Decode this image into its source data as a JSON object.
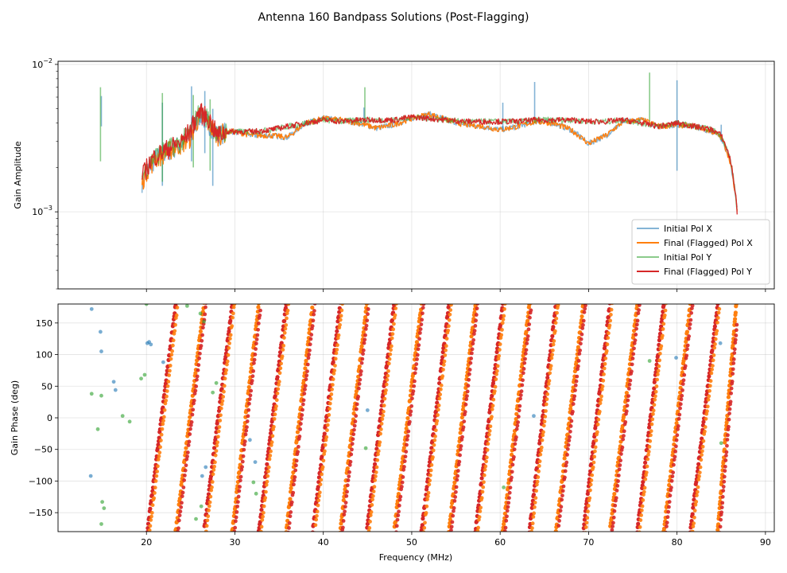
{
  "chart_data": {
    "title": "Antenna 160 Bandpass Solutions (Post-Flagging)",
    "subplots": [
      {
        "type": "line",
        "ylabel": "Gain Amplitude",
        "yscale": "log",
        "xlim": [
          10,
          91
        ],
        "ylim": [
          0.0003,
          0.0105
        ],
        "yticks": [
          0.001,
          0.01
        ],
        "ytick_labels": [
          "10^-3",
          "10^-2"
        ],
        "grid": true,
        "legend": {
          "position": "lower-right",
          "entries": [
            "Initial Pol X",
            "Final (Flagged) Pol X",
            "Initial Pol Y",
            "Final (Flagged) Pol Y"
          ]
        },
        "series": [
          {
            "name": "Initial Pol X",
            "color": "#1f77b4",
            "x": [
              19.5,
              20.0,
              21.0,
              22.0,
              23.0,
              24.0,
              25.0,
              26.0,
              27.0,
              28.0,
              29.0,
              30.0,
              32.0,
              34.0,
              36.0,
              38.0,
              40.0,
              42.0,
              44.0,
              46.0,
              48.0,
              50.0,
              52.0,
              54.0,
              56.0,
              58.0,
              60.0,
              62.0,
              64.0,
              66.0,
              68.0,
              70.0,
              72.0,
              74.0,
              76.0,
              78.0,
              80.0,
              82.0,
              84.0,
              85.0,
              86.0,
              86.5,
              86.8
            ],
            "values": [
              0.0016,
              0.0019,
              0.0023,
              0.0025,
              0.0027,
              0.0029,
              0.0032,
              0.0045,
              0.004,
              0.0033,
              0.0035,
              0.0035,
              0.0033,
              0.0033,
              0.0032,
              0.004,
              0.0043,
              0.0042,
              0.004,
              0.0037,
              0.0039,
              0.0043,
              0.0046,
              0.0042,
              0.0039,
              0.0038,
              0.0036,
              0.0038,
              0.0041,
              0.004,
              0.0036,
              0.0029,
              0.0033,
              0.0041,
              0.0042,
              0.0038,
              0.0039,
              0.0038,
              0.0035,
              0.0032,
              0.0022,
              0.0014,
              0.00105
            ]
          },
          {
            "name": "Final (Flagged) Pol X",
            "color": "#ff7f0e",
            "x": [
              19.5,
              20.0,
              21.0,
              22.0,
              23.0,
              24.0,
              25.0,
              26.0,
              27.0,
              28.0,
              29.0,
              30.0,
              32.0,
              34.0,
              36.0,
              38.0,
              40.0,
              42.0,
              44.0,
              46.0,
              48.0,
              50.0,
              52.0,
              54.0,
              56.0,
              58.0,
              60.0,
              62.0,
              64.0,
              66.0,
              68.0,
              70.0,
              72.0,
              74.0,
              76.0,
              78.0,
              80.0,
              82.0,
              84.0,
              85.0,
              86.0,
              86.5,
              86.8
            ],
            "values": [
              0.0016,
              0.0019,
              0.0023,
              0.0025,
              0.0027,
              0.0029,
              0.0032,
              0.0045,
              0.004,
              0.0033,
              0.0035,
              0.0035,
              0.0033,
              0.0033,
              0.0032,
              0.004,
              0.0043,
              0.0042,
              0.004,
              0.0037,
              0.0039,
              0.0043,
              0.0046,
              0.0042,
              0.0039,
              0.0038,
              0.0036,
              0.0038,
              0.0041,
              0.004,
              0.0036,
              0.0029,
              0.0033,
              0.0041,
              0.0042,
              0.0038,
              0.0039,
              0.0038,
              0.0035,
              0.0032,
              0.0022,
              0.0014,
              0.00105
            ]
          },
          {
            "name": "Initial Pol Y",
            "color": "#2ca02c",
            "x": [
              19.5,
              20.0,
              21.0,
              22.0,
              23.0,
              24.0,
              25.0,
              26.0,
              27.0,
              28.0,
              29.0,
              30.0,
              32.0,
              34.0,
              36.0,
              38.0,
              40.0,
              42.0,
              44.0,
              46.0,
              48.0,
              50.0,
              52.0,
              54.0,
              56.0,
              58.0,
              60.0,
              62.0,
              64.0,
              66.0,
              68.0,
              70.0,
              72.0,
              74.0,
              76.0,
              78.0,
              80.0,
              82.0,
              84.0,
              85.0,
              86.0,
              86.5,
              86.8
            ],
            "values": [
              0.0017,
              0.002,
              0.0024,
              0.0026,
              0.0028,
              0.003,
              0.0036,
              0.0048,
              0.0043,
              0.0033,
              0.0035,
              0.0035,
              0.0035,
              0.0036,
              0.0038,
              0.004,
              0.0042,
              0.0041,
              0.0042,
              0.0042,
              0.0042,
              0.0044,
              0.0043,
              0.0042,
              0.0041,
              0.0041,
              0.0041,
              0.0041,
              0.0042,
              0.0042,
              0.0042,
              0.0041,
              0.0041,
              0.0042,
              0.004,
              0.0038,
              0.004,
              0.0038,
              0.0036,
              0.0033,
              0.0023,
              0.0015,
              0.001
            ]
          },
          {
            "name": "Final (Flagged) Pol Y",
            "color": "#d62728",
            "x": [
              19.5,
              20.0,
              21.0,
              22.0,
              23.0,
              24.0,
              25.0,
              26.0,
              27.0,
              28.0,
              29.0,
              30.0,
              32.0,
              34.0,
              36.0,
              38.0,
              40.0,
              42.0,
              44.0,
              46.0,
              48.0,
              50.0,
              52.0,
              54.0,
              56.0,
              58.0,
              60.0,
              62.0,
              64.0,
              66.0,
              68.0,
              70.0,
              72.0,
              74.0,
              76.0,
              78.0,
              80.0,
              82.0,
              84.0,
              85.0,
              86.0,
              86.5,
              86.8
            ],
            "values": [
              0.0017,
              0.002,
              0.0024,
              0.0026,
              0.0028,
              0.003,
              0.0036,
              0.0048,
              0.0043,
              0.0033,
              0.0035,
              0.0035,
              0.0035,
              0.0036,
              0.0038,
              0.004,
              0.0042,
              0.0041,
              0.0042,
              0.0042,
              0.0042,
              0.0044,
              0.0043,
              0.0042,
              0.0041,
              0.0041,
              0.0041,
              0.0041,
              0.0042,
              0.0042,
              0.0042,
              0.0041,
              0.0041,
              0.0042,
              0.004,
              0.0038,
              0.004,
              0.0038,
              0.0036,
              0.0033,
              0.0023,
              0.0015,
              0.001
            ]
          }
        ],
        "spikes": [
          {
            "series": "Initial Pol X",
            "x": 14.9,
            "low": 0.0038,
            "high": 0.0061
          },
          {
            "series": "Initial Pol Y",
            "x": 14.8,
            "low": 0.0022,
            "high": 0.007
          },
          {
            "series": "Initial Pol X",
            "x": 21.8,
            "low": 0.0015,
            "high": 0.0055
          },
          {
            "series": "Initial Pol Y",
            "x": 21.8,
            "low": 0.0016,
            "high": 0.0064
          },
          {
            "series": "Initial Pol X",
            "x": 25.1,
            "low": 0.0022,
            "high": 0.0071
          },
          {
            "series": "Initial Pol Y",
            "x": 25.3,
            "low": 0.002,
            "high": 0.0062
          },
          {
            "series": "Initial Pol X",
            "x": 26.6,
            "low": 0.0025,
            "high": 0.0066
          },
          {
            "series": "Initial Pol Y",
            "x": 27.2,
            "low": 0.0019,
            "high": 0.0058
          },
          {
            "series": "Initial Pol X",
            "x": 27.5,
            "low": 0.0015,
            "high": 0.005
          },
          {
            "series": "Initial Pol Y",
            "x": 44.7,
            "low": 0.004,
            "high": 0.007
          },
          {
            "series": "Initial Pol X",
            "x": 44.6,
            "low": 0.0039,
            "high": 0.0051
          },
          {
            "series": "Initial Pol X",
            "x": 60.3,
            "low": 0.0035,
            "high": 0.0055
          },
          {
            "series": "Initial Pol X",
            "x": 63.9,
            "low": 0.004,
            "high": 0.0076
          },
          {
            "series": "Initial Pol Y",
            "x": 76.9,
            "low": 0.004,
            "high": 0.0088
          },
          {
            "series": "Initial Pol X",
            "x": 80.0,
            "low": 0.0019,
            "high": 0.0078
          },
          {
            "series": "Initial Pol X",
            "x": 85.0,
            "low": 0.003,
            "high": 0.0039
          }
        ]
      },
      {
        "type": "scatter",
        "ylabel": "Gain Phase (deg)",
        "xlabel": "Frequency (MHz)",
        "xlim": [
          10,
          91
        ],
        "ylim": [
          -180,
          180
        ],
        "xticks": [
          20,
          30,
          40,
          50,
          60,
          70,
          80,
          90
        ],
        "yticks": [
          -150,
          -100,
          -50,
          0,
          50,
          100,
          150
        ],
        "grid": true,
        "phase_wrap": {
          "description_series": [
            "Final (Flagged) Pol X",
            "Final (Flagged) Pol Y"
          ],
          "wrap_crossings_mhz": [
            20.1,
            23.3,
            26.5,
            29.7,
            32.7,
            35.8,
            38.8,
            41.9,
            44.9,
            48.0,
            51.1,
            54.2,
            57.2,
            60.3,
            63.3,
            66.3,
            69.4,
            72.4,
            75.5,
            78.5,
            81.5,
            84.6,
            86.7
          ],
          "phase_slope_deg_per_mhz": 118,
          "freq_range": [
            20,
            86.8
          ],
          "colors": {
            "Final (Flagged) Pol X": "#ff7f0e",
            "Final (Flagged) Pol Y": "#d62728"
          }
        },
        "initial_points": [
          {
            "series": "Initial Pol X",
            "x": 13.8,
            "y": 172
          },
          {
            "series": "Initial Pol X",
            "x": 14.8,
            "y": 136
          },
          {
            "series": "Initial Pol X",
            "x": 14.9,
            "y": 105
          },
          {
            "series": "Initial Pol X",
            "x": 13.7,
            "y": -92
          },
          {
            "series": "Initial Pol X",
            "x": 16.3,
            "y": 57
          },
          {
            "series": "Initial Pol X",
            "x": 16.5,
            "y": 44
          },
          {
            "series": "Initial Pol X",
            "x": 20.1,
            "y": 118
          },
          {
            "series": "Initial Pol X",
            "x": 20.3,
            "y": 120
          },
          {
            "series": "Initial Pol X",
            "x": 20.5,
            "y": 116
          },
          {
            "series": "Initial Pol X",
            "x": 21.9,
            "y": 88
          },
          {
            "series": "Initial Pol X",
            "x": 26.7,
            "y": -78
          },
          {
            "series": "Initial Pol X",
            "x": 26.3,
            "y": -92
          },
          {
            "series": "Initial Pol X",
            "x": 31.7,
            "y": -35
          },
          {
            "series": "Initial Pol X",
            "x": 32.3,
            "y": -70
          },
          {
            "series": "Initial Pol X",
            "x": 45.0,
            "y": 12
          },
          {
            "series": "Initial Pol X",
            "x": 63.8,
            "y": 3
          },
          {
            "series": "Initial Pol X",
            "x": 79.9,
            "y": 95
          },
          {
            "series": "Initial Pol X",
            "x": 84.9,
            "y": 118
          },
          {
            "series": "Initial Pol Y",
            "x": 13.8,
            "y": 38
          },
          {
            "series": "Initial Pol Y",
            "x": 14.5,
            "y": -18
          },
          {
            "series": "Initial Pol Y",
            "x": 14.9,
            "y": 35
          },
          {
            "series": "Initial Pol Y",
            "x": 15.0,
            "y": -133
          },
          {
            "series": "Initial Pol Y",
            "x": 15.2,
            "y": -143
          },
          {
            "series": "Initial Pol Y",
            "x": 14.9,
            "y": -168
          },
          {
            "series": "Initial Pol Y",
            "x": 17.3,
            "y": 3
          },
          {
            "series": "Initial Pol Y",
            "x": 18.1,
            "y": -6
          },
          {
            "series": "Initial Pol Y",
            "x": 19.4,
            "y": 62
          },
          {
            "series": "Initial Pol Y",
            "x": 19.8,
            "y": 68
          },
          {
            "series": "Initial Pol Y",
            "x": 20.0,
            "y": 180
          },
          {
            "series": "Initial Pol Y",
            "x": 24.6,
            "y": 177
          },
          {
            "series": "Initial Pol Y",
            "x": 26.1,
            "y": 165
          },
          {
            "series": "Initial Pol Y",
            "x": 26.5,
            "y": 152
          },
          {
            "series": "Initial Pol Y",
            "x": 27.9,
            "y": 55
          },
          {
            "series": "Initial Pol Y",
            "x": 27.5,
            "y": 40
          },
          {
            "series": "Initial Pol Y",
            "x": 25.6,
            "y": -160
          },
          {
            "series": "Initial Pol Y",
            "x": 26.2,
            "y": -140
          },
          {
            "series": "Initial Pol Y",
            "x": 32.1,
            "y": -102
          },
          {
            "series": "Initial Pol Y",
            "x": 32.4,
            "y": -120
          },
          {
            "series": "Initial Pol Y",
            "x": 44.8,
            "y": -48
          },
          {
            "series": "Initial Pol Y",
            "x": 60.4,
            "y": -110
          },
          {
            "series": "Initial Pol Y",
            "x": 76.9,
            "y": 90
          },
          {
            "series": "Initial Pol Y",
            "x": 85.0,
            "y": -40
          }
        ]
      }
    ]
  }
}
